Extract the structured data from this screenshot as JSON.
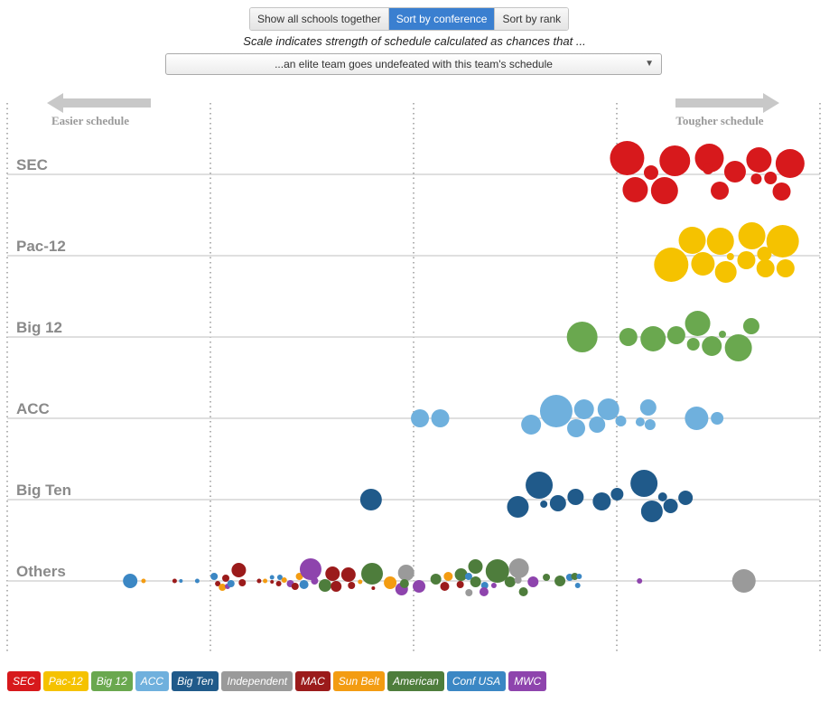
{
  "controls": {
    "sort_buttons": [
      {
        "label": "Show all schools together",
        "active": false
      },
      {
        "label": "Sort by conference",
        "active": true
      },
      {
        "label": "Sort by rank",
        "active": false
      }
    ],
    "scale_caption": "Scale indicates strength of schedule calculated as chances that ...",
    "scale_select": "...an elite team goes undefeated with this team's schedule"
  },
  "colors": {
    "SEC": "#d7191c",
    "Pac-12": "#f5c200",
    "Big 12": "#6aa84f",
    "ACC": "#6fb0dd",
    "Big Ten": "#205a8a",
    "Independent": "#9a9a9a",
    "MAC": "#9b1b1b",
    "Sun Belt": "#f39c12",
    "American": "#4e7d3c",
    "Conf USA": "#3b87c4",
    "MWC": "#8e44ad",
    "active_button": "#3a7fd0",
    "arrow": "#c8c8c8",
    "axis_line": "#cccccc",
    "grid": "#999999"
  },
  "chart_data": {
    "type": "scatter",
    "title": "",
    "x_direction": {
      "left_label": "Easier schedule",
      "right_label": "Tougher schedule"
    },
    "x_range": [
      0,
      1
    ],
    "grid_lines": [
      0,
      0.25,
      0.5,
      0.75,
      1
    ],
    "rows": [
      {
        "name": "SEC",
        "teams": [
          {
            "conf": "SEC",
            "x": 0.7627,
            "y": -18,
            "size": 19
          },
          {
            "conf": "SEC",
            "x": 0.7922,
            "y": -2,
            "size": 8
          },
          {
            "conf": "SEC",
            "x": 0.8214,
            "y": -15,
            "size": 17
          },
          {
            "conf": "SEC",
            "x": 0.8639,
            "y": -18,
            "size": 16
          },
          {
            "conf": "SEC",
            "x": 0.8955,
            "y": -3,
            "size": 12
          },
          {
            "conf": "SEC",
            "x": 0.9249,
            "y": -16,
            "size": 14
          },
          {
            "conf": "SEC",
            "x": 0.9632,
            "y": -12,
            "size": 16
          },
          {
            "conf": "SEC",
            "x": 0.7727,
            "y": 17,
            "size": 14
          },
          {
            "conf": "SEC",
            "x": 0.8087,
            "y": 18,
            "size": 15
          },
          {
            "conf": "SEC",
            "x": 0.8624,
            "y": -6,
            "size": 6
          },
          {
            "conf": "SEC",
            "x": 0.8767,
            "y": 18,
            "size": 10
          },
          {
            "conf": "SEC",
            "x": 0.9216,
            "y": 5,
            "size": 6
          },
          {
            "conf": "SEC",
            "x": 0.9392,
            "y": 4,
            "size": 7
          },
          {
            "conf": "SEC",
            "x": 0.9528,
            "y": 19,
            "size": 10
          }
        ]
      },
      {
        "name": "Pac-12",
        "teams": [
          {
            "conf": "Pac-12",
            "x": 0.8428,
            "y": -17,
            "size": 15
          },
          {
            "conf": "Pac-12",
            "x": 0.8775,
            "y": -16,
            "size": 15
          },
          {
            "conf": "Pac-12",
            "x": 0.9162,
            "y": -22,
            "size": 15
          },
          {
            "conf": "Pac-12",
            "x": 0.9541,
            "y": -16,
            "size": 18
          },
          {
            "conf": "Pac-12",
            "x": 0.817,
            "y": 10,
            "size": 19
          },
          {
            "conf": "Pac-12",
            "x": 0.856,
            "y": 9,
            "size": 13
          },
          {
            "conf": "Pac-12",
            "x": 0.8841,
            "y": 18,
            "size": 12
          },
          {
            "conf": "Pac-12",
            "x": 0.8898,
            "y": 1,
            "size": 4
          },
          {
            "conf": "Pac-12",
            "x": 0.9094,
            "y": 5,
            "size": 10
          },
          {
            "conf": "Pac-12",
            "x": 0.933,
            "y": 14,
            "size": 10
          },
          {
            "conf": "Pac-12",
            "x": 0.9316,
            "y": -2,
            "size": 8
          },
          {
            "conf": "Pac-12",
            "x": 0.9576,
            "y": 14,
            "size": 10
          }
        ]
      },
      {
        "name": "Big 12",
        "teams": [
          {
            "conf": "Big 12",
            "x": 0.7074,
            "y": 0,
            "size": 17
          },
          {
            "conf": "Big 12",
            "x": 0.7642,
            "y": 0,
            "size": 10
          },
          {
            "conf": "Big 12",
            "x": 0.7947,
            "y": 2,
            "size": 14
          },
          {
            "conf": "Big 12",
            "x": 0.8232,
            "y": -2,
            "size": 10
          },
          {
            "conf": "Big 12",
            "x": 0.8495,
            "y": -15,
            "size": 14
          },
          {
            "conf": "Big 12",
            "x": 0.8441,
            "y": 8,
            "size": 7
          },
          {
            "conf": "Big 12",
            "x": 0.88,
            "y": -3,
            "size": 4
          },
          {
            "conf": "Big 12",
            "x": 0.8669,
            "y": 10,
            "size": 11
          },
          {
            "conf": "Big 12",
            "x": 0.8996,
            "y": 12,
            "size": 15
          },
          {
            "conf": "Big 12",
            "x": 0.9155,
            "y": -12,
            "size": 9
          }
        ]
      },
      {
        "name": "ACC",
        "teams": [
          {
            "conf": "ACC",
            "x": 0.5078,
            "y": 0,
            "size": 10
          },
          {
            "conf": "ACC",
            "x": 0.5328,
            "y": 0,
            "size": 10
          },
          {
            "conf": "ACC",
            "x": 0.6446,
            "y": 7,
            "size": 11
          },
          {
            "conf": "ACC",
            "x": 0.6755,
            "y": -8,
            "size": 18
          },
          {
            "conf": "ACC",
            "x": 0.7097,
            "y": -10,
            "size": 11
          },
          {
            "conf": "ACC",
            "x": 0.7397,
            "y": -10,
            "size": 12
          },
          {
            "conf": "ACC",
            "x": 0.7,
            "y": 11,
            "size": 10
          },
          {
            "conf": "ACC",
            "x": 0.7258,
            "y": 7,
            "size": 9
          },
          {
            "conf": "ACC",
            "x": 0.755,
            "y": 3,
            "size": 6
          },
          {
            "conf": "ACC",
            "x": 0.7887,
            "y": -12,
            "size": 9
          },
          {
            "conf": "ACC",
            "x": 0.7788,
            "y": 4,
            "size": 5
          },
          {
            "conf": "ACC",
            "x": 0.791,
            "y": 7,
            "size": 6
          },
          {
            "conf": "ACC",
            "x": 0.8482,
            "y": 0,
            "size": 13
          },
          {
            "conf": "ACC",
            "x": 0.8735,
            "y": 0,
            "size": 7
          }
        ]
      },
      {
        "name": "Big Ten",
        "teams": [
          {
            "conf": "Big Ten",
            "x": 0.4476,
            "y": 0,
            "size": 12
          },
          {
            "conf": "Big Ten",
            "x": 0.6283,
            "y": 8,
            "size": 12
          },
          {
            "conf": "Big Ten",
            "x": 0.6545,
            "y": -16,
            "size": 15
          },
          {
            "conf": "Big Ten",
            "x": 0.6602,
            "y": 5,
            "size": 4
          },
          {
            "conf": "Big Ten",
            "x": 0.6776,
            "y": 4,
            "size": 9
          },
          {
            "conf": "Big Ten",
            "x": 0.6993,
            "y": -3,
            "size": 9
          },
          {
            "conf": "Big Ten",
            "x": 0.7315,
            "y": 2,
            "size": 10
          },
          {
            "conf": "Big Ten",
            "x": 0.7504,
            "y": -6,
            "size": 7
          },
          {
            "conf": "Big Ten",
            "x": 0.7835,
            "y": -18,
            "size": 15
          },
          {
            "conf": "Big Ten",
            "x": 0.7835,
            "y": 11,
            "size": 3
          },
          {
            "conf": "Big Ten",
            "x": 0.7932,
            "y": 13,
            "size": 12
          },
          {
            "conf": "Big Ten",
            "x": 0.8064,
            "y": -3,
            "size": 5
          },
          {
            "conf": "Big Ten",
            "x": 0.8162,
            "y": 7,
            "size": 8
          },
          {
            "conf": "Big Ten",
            "x": 0.8346,
            "y": -2,
            "size": 8
          }
        ]
      },
      {
        "name": "Others",
        "teams": [
          {
            "conf": "Conf USA",
            "x": 0.1513,
            "y": 0,
            "size": 8
          },
          {
            "conf": "Sun Belt",
            "x": 0.1677,
            "y": 0,
            "size": 2.5
          },
          {
            "conf": "MAC",
            "x": 0.206,
            "y": 0,
            "size": 2.5
          },
          {
            "conf": "Conf USA",
            "x": 0.2137,
            "y": 0,
            "size": 2
          },
          {
            "conf": "Conf USA",
            "x": 0.2338,
            "y": 0,
            "size": 2.5
          },
          {
            "conf": "Conf USA",
            "x": 0.2546,
            "y": -5,
            "size": 4
          },
          {
            "conf": "MAC",
            "x": 0.259,
            "y": 3,
            "size": 3
          },
          {
            "conf": "Sun Belt",
            "x": 0.2647,
            "y": 7,
            "size": 4
          },
          {
            "conf": "MAC",
            "x": 0.2689,
            "y": -3,
            "size": 4
          },
          {
            "conf": "MWC",
            "x": 0.2711,
            "y": 6,
            "size": 3
          },
          {
            "conf": "Conf USA",
            "x": 0.2753,
            "y": 3,
            "size": 4
          },
          {
            "conf": "MAC",
            "x": 0.2849,
            "y": -12,
            "size": 8
          },
          {
            "conf": "MAC",
            "x": 0.2892,
            "y": 2,
            "size": 4
          },
          {
            "conf": "MAC",
            "x": 0.3099,
            "y": 0,
            "size": 2.5
          },
          {
            "conf": "Sun Belt",
            "x": 0.3173,
            "y": 0,
            "size": 2.5
          },
          {
            "conf": "MAC",
            "x": 0.3258,
            "y": 1,
            "size": 2
          },
          {
            "conf": "Conf USA",
            "x": 0.3258,
            "y": -4,
            "size": 2.5
          },
          {
            "conf": "MAC",
            "x": 0.334,
            "y": 3,
            "size": 3
          },
          {
            "conf": "Conf USA",
            "x": 0.3355,
            "y": -4,
            "size": 3
          },
          {
            "conf": "Sun Belt",
            "x": 0.3408,
            "y": -1,
            "size": 3
          },
          {
            "conf": "MWC",
            "x": 0.3484,
            "y": 3,
            "size": 4
          },
          {
            "conf": "Sun Belt",
            "x": 0.3595,
            "y": -5,
            "size": 4
          },
          {
            "conf": "MAC",
            "x": 0.3542,
            "y": 6,
            "size": 4
          },
          {
            "conf": "MWC",
            "x": 0.3733,
            "y": -13,
            "size": 12
          },
          {
            "conf": "Conf USA",
            "x": 0.3651,
            "y": 4,
            "size": 5
          },
          {
            "conf": "MWC",
            "x": 0.3782,
            "y": 0,
            "size": 4
          },
          {
            "conf": "American",
            "x": 0.391,
            "y": 5,
            "size": 7
          },
          {
            "conf": "MAC",
            "x": 0.4003,
            "y": -8,
            "size": 8
          },
          {
            "conf": "MAC",
            "x": 0.4047,
            "y": 6,
            "size": 6
          },
          {
            "conf": "MAC",
            "x": 0.4198,
            "y": -7,
            "size": 8
          },
          {
            "conf": "MAC",
            "x": 0.4236,
            "y": 5,
            "size": 4
          },
          {
            "conf": "Sun Belt",
            "x": 0.4342,
            "y": 1,
            "size": 2.5
          },
          {
            "conf": "American",
            "x": 0.4489,
            "y": -8,
            "size": 12
          },
          {
            "conf": "MAC",
            "x": 0.4504,
            "y": 8,
            "size": 2
          },
          {
            "conf": "Sun Belt",
            "x": 0.4712,
            "y": 2,
            "size": 7
          },
          {
            "conf": "MWC",
            "x": 0.4853,
            "y": 9,
            "size": 7
          },
          {
            "conf": "Independent",
            "x": 0.4908,
            "y": -9,
            "size": 9
          },
          {
            "conf": "American",
            "x": 0.4887,
            "y": 3,
            "size": 5
          },
          {
            "conf": "MWC",
            "x": 0.5067,
            "y": 6,
            "size": 7
          },
          {
            "conf": "American",
            "x": 0.5274,
            "y": -2,
            "size": 6
          },
          {
            "conf": "Sun Belt",
            "x": 0.5426,
            "y": -5,
            "size": 5
          },
          {
            "conf": "MAC",
            "x": 0.5383,
            "y": 6,
            "size": 5
          },
          {
            "conf": "American",
            "x": 0.5584,
            "y": -7,
            "size": 7
          },
          {
            "conf": "MAC",
            "x": 0.5574,
            "y": 4,
            "size": 4
          },
          {
            "conf": "Conf USA",
            "x": 0.5677,
            "y": -5,
            "size": 4
          },
          {
            "conf": "Conf USA",
            "x": 0.5742,
            "y": 1,
            "size": 4
          },
          {
            "conf": "American",
            "x": 0.5763,
            "y": 1,
            "size": 6
          },
          {
            "conf": "Independent",
            "x": 0.5681,
            "y": 13,
            "size": 4
          },
          {
            "conf": "American",
            "x": 0.5761,
            "y": -16,
            "size": 8
          },
          {
            "conf": "Conf USA",
            "x": 0.5875,
            "y": 5,
            "size": 4
          },
          {
            "conf": "MWC",
            "x": 0.5866,
            "y": 12,
            "size": 5
          },
          {
            "conf": "American",
            "x": 0.6031,
            "y": -11,
            "size": 13
          },
          {
            "conf": "MWC",
            "x": 0.5988,
            "y": 5,
            "size": 3
          },
          {
            "conf": "Independent",
            "x": 0.6296,
            "y": -14,
            "size": 11
          },
          {
            "conf": "American",
            "x": 0.6187,
            "y": 1,
            "size": 6
          },
          {
            "conf": "Independent",
            "x": 0.6285,
            "y": -1,
            "size": 4
          },
          {
            "conf": "American",
            "x": 0.6351,
            "y": 12,
            "size": 5
          },
          {
            "conf": "MWC",
            "x": 0.647,
            "y": 1,
            "size": 6
          },
          {
            "conf": "American",
            "x": 0.6634,
            "y": -4,
            "size": 4
          },
          {
            "conf": "American",
            "x": 0.6801,
            "y": 0,
            "size": 6
          },
          {
            "conf": "Conf USA",
            "x": 0.6921,
            "y": -4,
            "size": 4
          },
          {
            "conf": "American",
            "x": 0.6983,
            "y": -5,
            "size": 4
          },
          {
            "conf": "Conf USA",
            "x": 0.7019,
            "y": 5,
            "size": 3
          },
          {
            "conf": "Conf USA",
            "x": 0.7037,
            "y": -5,
            "size": 3
          },
          {
            "conf": "MWC",
            "x": 0.778,
            "y": 0,
            "size": 3
          },
          {
            "conf": "Independent",
            "x": 0.9064,
            "y": 0,
            "size": 13
          }
        ]
      }
    ],
    "legend": [
      "SEC",
      "Pac-12",
      "Big 12",
      "ACC",
      "Big Ten",
      "Independent",
      "MAC",
      "Sun Belt",
      "American",
      "Conf USA",
      "MWC"
    ]
  }
}
